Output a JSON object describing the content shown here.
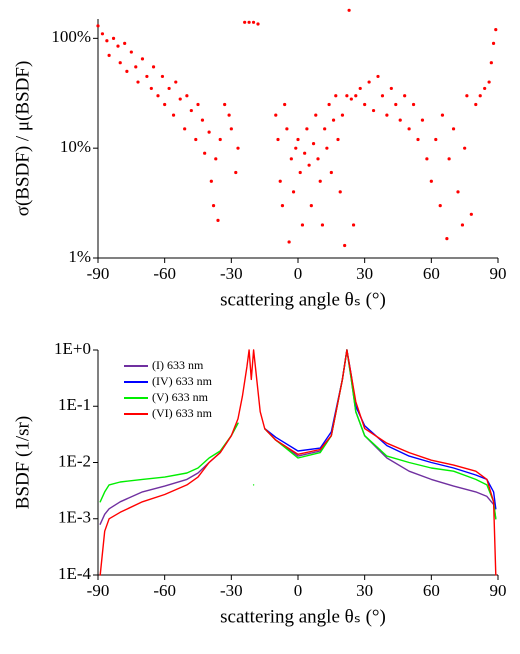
{
  "chart_data": [
    {
      "type": "scatter",
      "ylabel": "σ(BSDF) / μ(BSDF)",
      "xlabel": "scattering angle θₛ (°)",
      "color": "#ff0000",
      "log_y": true,
      "xlim": [
        -90,
        90
      ],
      "xticks": [
        -90,
        -60,
        -30,
        0,
        30,
        60,
        90
      ],
      "ylim": [
        1,
        150
      ],
      "yticks": [
        {
          "value": 1,
          "label": "1%"
        },
        {
          "value": 10,
          "label": "10%"
        },
        {
          "value": 100,
          "label": "100%"
        }
      ],
      "x": [
        -90,
        -88,
        -86,
        -85,
        -83,
        -81,
        -80,
        -78,
        -77,
        -75,
        -73,
        -72,
        -70,
        -68,
        -66,
        -65,
        -63,
        -61,
        -60,
        -58,
        -56,
        -55,
        -53,
        -51,
        -50,
        -48,
        -46,
        -45,
        -43,
        -42,
        -40,
        -39,
        -38,
        -37,
        -36,
        -35,
        -33,
        -31,
        -30,
        -28,
        -27,
        -24,
        -22,
        -20,
        -18,
        -10,
        -9,
        -8,
        -7,
        -6,
        -5,
        -4,
        -3,
        -2,
        -1,
        0,
        1,
        2,
        3,
        4,
        5,
        6,
        7,
        8,
        9,
        10,
        11,
        12,
        13,
        14,
        15,
        16,
        17,
        18,
        19,
        20,
        21,
        22,
        23,
        24,
        25,
        26,
        28,
        30,
        32,
        34,
        36,
        38,
        40,
        42,
        44,
        46,
        48,
        50,
        52,
        54,
        56,
        58,
        60,
        62,
        64,
        65,
        67,
        68,
        70,
        72,
        74,
        75,
        76,
        78,
        80,
        82,
        84,
        86,
        87,
        88,
        89
      ],
      "values": [
        130,
        110,
        95,
        70,
        100,
        85,
        60,
        90,
        50,
        75,
        55,
        40,
        65,
        45,
        35,
        55,
        30,
        45,
        25,
        35,
        20,
        40,
        28,
        15,
        30,
        22,
        12,
        25,
        18,
        9,
        14,
        5,
        3,
        8,
        2.2,
        12,
        25,
        20,
        15,
        6,
        10,
        140,
        140,
        140,
        135,
        20,
        12,
        5,
        3,
        25,
        15,
        1.4,
        8,
        4,
        10,
        12,
        6,
        2,
        9,
        15,
        7,
        3,
        11,
        20,
        8,
        5,
        2,
        15,
        10,
        25,
        6,
        18,
        30,
        12,
        4,
        20,
        1.3,
        30,
        180,
        28,
        2,
        30,
        35,
        25,
        40,
        22,
        45,
        30,
        20,
        35,
        25,
        18,
        30,
        15,
        25,
        12,
        18,
        8,
        5,
        12,
        3,
        20,
        1.5,
        8,
        15,
        4,
        2,
        10,
        30,
        2.5,
        25,
        30,
        35,
        40,
        60,
        90,
        120
      ]
    },
    {
      "type": "line",
      "ylabel": "BSDF  (1/sr)",
      "xlabel": "scattering angle θₛ (°)",
      "log_y": true,
      "legend": "upper left",
      "xlim": [
        -90,
        90
      ],
      "xticks": [
        -90,
        -60,
        -30,
        0,
        30,
        60,
        90
      ],
      "ylim": [
        0.0001,
        1
      ],
      "yticks": [
        {
          "value": 0.0001,
          "label": "1E-4"
        },
        {
          "value": 0.001,
          "label": "1E-3"
        },
        {
          "value": 0.01,
          "label": "1E-2"
        },
        {
          "value": 0.1,
          "label": "1E-1"
        },
        {
          "value": 1,
          "label": "1E+0"
        }
      ],
      "x": [
        -89,
        -87,
        -85,
        -80,
        -70,
        -60,
        -50,
        -45,
        -40,
        -35,
        -30,
        -27,
        -25,
        -23,
        -22,
        -21,
        -20,
        -17,
        -15,
        -10,
        0,
        10,
        15,
        20,
        22,
        24,
        26,
        30,
        40,
        50,
        60,
        70,
        80,
        85,
        88,
        89
      ],
      "series": [
        {
          "name": "(I) 633 nm",
          "color": "#7030a0",
          "values": [
            0.0008,
            0.0012,
            0.0015,
            0.002,
            0.003,
            0.0038,
            0.005,
            0.0065,
            0.01,
            0.015,
            0.03,
            0.05,
            null,
            null,
            null,
            null,
            null,
            null,
            0.04,
            0.025,
            0.013,
            0.016,
            0.03,
            0.3,
            1,
            0.3,
            0.08,
            0.03,
            0.012,
            0.007,
            0.005,
            0.0038,
            0.003,
            0.0025,
            0.0018,
            0.001
          ]
        },
        {
          "name": "(IV) 633 nm",
          "color": "#0000ff",
          "values": [
            null,
            null,
            null,
            null,
            null,
            null,
            null,
            null,
            null,
            null,
            null,
            null,
            null,
            null,
            null,
            null,
            null,
            null,
            0.04,
            0.028,
            0.016,
            0.018,
            0.035,
            0.3,
            1,
            0.35,
            0.1,
            0.045,
            0.02,
            0.013,
            0.01,
            0.008,
            0.006,
            0.005,
            0.003,
            0.0015
          ]
        },
        {
          "name": "(V) 633 nm",
          "color": "#00ee00",
          "values": [
            0.002,
            0.003,
            0.004,
            0.0045,
            0.005,
            0.0055,
            0.0065,
            0.008,
            0.012,
            0.016,
            0.03,
            0.05,
            null,
            null,
            null,
            null,
            0.004,
            null,
            0.04,
            0.025,
            0.012,
            0.015,
            0.03,
            0.3,
            1,
            0.3,
            0.08,
            0.03,
            0.013,
            0.01,
            0.008,
            0.007,
            0.005,
            0.004,
            0.002,
            0.001
          ]
        },
        {
          "name": "(VI) 633 nm",
          "color": "#ff0000",
          "values": [
            0.0001,
            0.0006,
            0.001,
            0.0013,
            0.002,
            0.0027,
            0.004,
            0.0055,
            0.01,
            0.015,
            0.03,
            0.06,
            0.15,
            0.5,
            1,
            0.3,
            1,
            0.08,
            0.04,
            0.025,
            0.014,
            0.017,
            0.03,
            0.3,
            1,
            0.35,
            0.12,
            0.04,
            0.022,
            0.015,
            0.011,
            0.009,
            0.007,
            0.005,
            0.002,
            0.0001
          ]
        }
      ]
    }
  ]
}
